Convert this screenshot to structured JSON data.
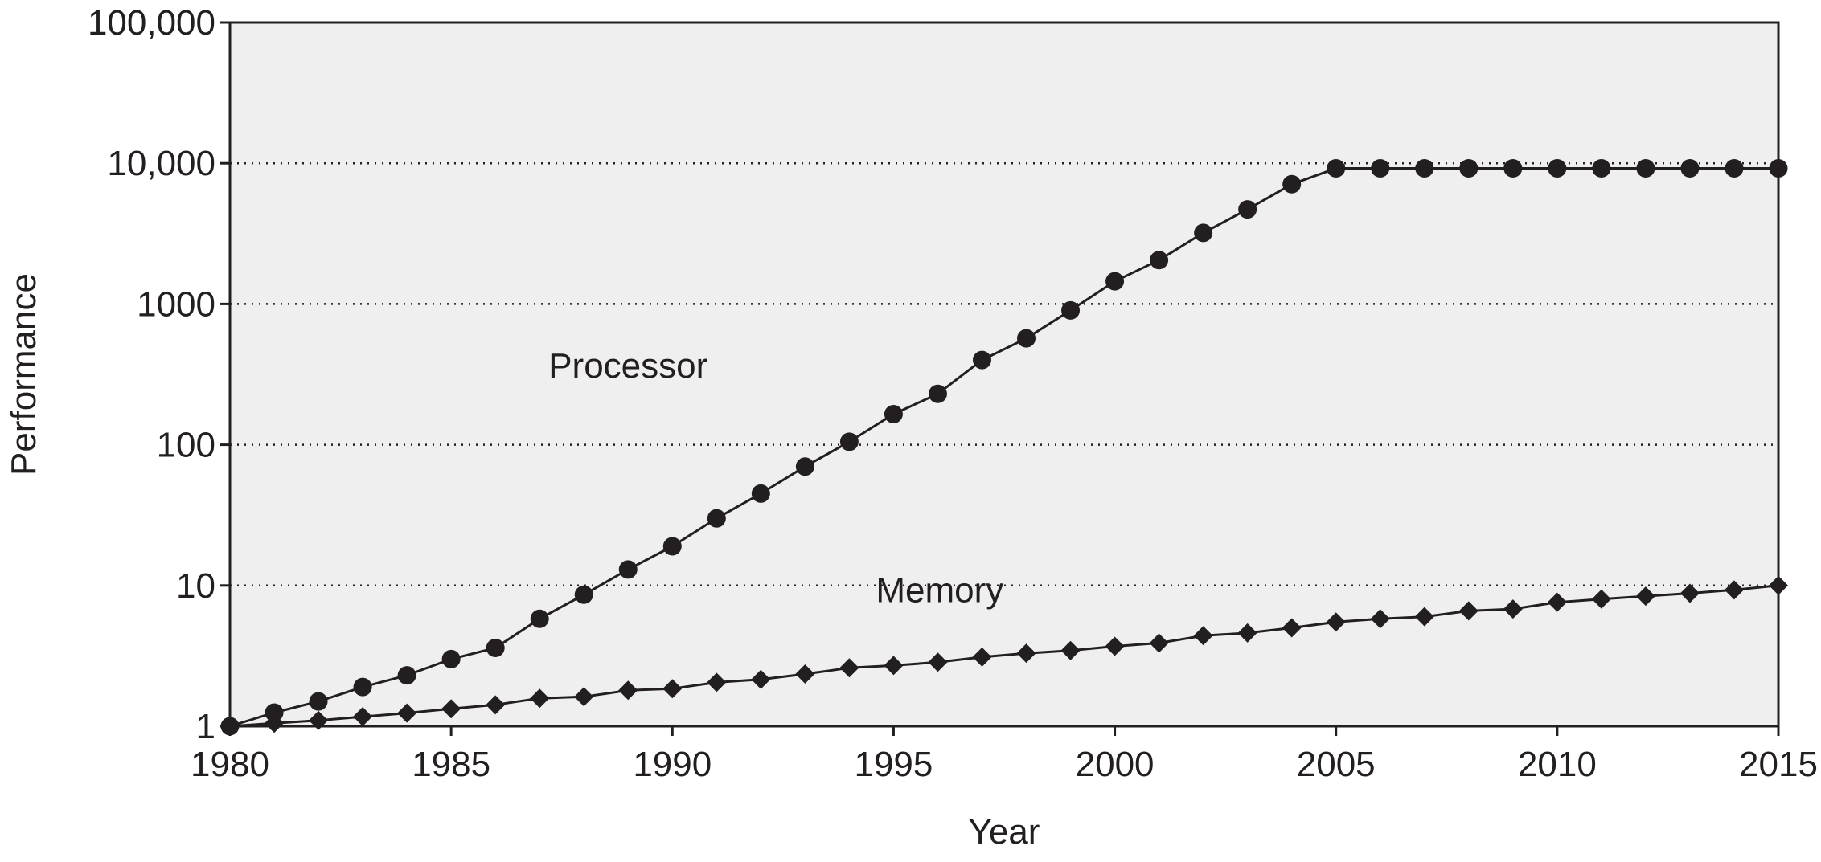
{
  "chart_data": {
    "type": "line",
    "title": "",
    "xlabel": "Year",
    "ylabel": "Performance",
    "yscale": "log",
    "xlim": [
      1980,
      2015
    ],
    "ylim": [
      1,
      100000
    ],
    "x_ticks": [
      1980,
      1985,
      1990,
      1995,
      2000,
      2005,
      2010,
      2015
    ],
    "x_tick_labels": [
      "1980",
      "1985",
      "1990",
      "1995",
      "2000",
      "2005",
      "2010",
      "2015"
    ],
    "y_ticks": [
      1,
      10,
      100,
      1000,
      10000,
      100000
    ],
    "y_tick_labels": [
      "1",
      "10",
      "100",
      "1000",
      "10,000",
      "100,000"
    ],
    "gridlines": "horizontal dotted",
    "background": "#efefef",
    "x": [
      1980,
      1981,
      1982,
      1983,
      1984,
      1985,
      1986,
      1987,
      1988,
      1989,
      1990,
      1991,
      1992,
      1993,
      1994,
      1995,
      1996,
      1997,
      1998,
      1999,
      2000,
      2001,
      2002,
      2003,
      2004,
      2005,
      2006,
      2007,
      2008,
      2009,
      2010,
      2011,
      2012,
      2013,
      2014,
      2015
    ],
    "series": [
      {
        "name": "Processor",
        "marker": "circle",
        "label_anchor": [
          1987.2,
          300
        ],
        "values": [
          1,
          1.25,
          1.5,
          1.9,
          2.3,
          3.0,
          3.6,
          5.8,
          8.6,
          13,
          19,
          30,
          45,
          70,
          105,
          165,
          230,
          400,
          570,
          900,
          1450,
          2050,
          3200,
          4700,
          7100,
          9200,
          9200,
          9200,
          9200,
          9200,
          9200,
          9200,
          9200,
          9200,
          9200,
          9200
        ]
      },
      {
        "name": "Memory",
        "marker": "diamond",
        "label_anchor": [
          1994.6,
          7.6
        ],
        "values": [
          1,
          1.05,
          1.1,
          1.17,
          1.24,
          1.33,
          1.42,
          1.58,
          1.62,
          1.8,
          1.85,
          2.05,
          2.15,
          2.35,
          2.6,
          2.7,
          2.85,
          3.1,
          3.3,
          3.45,
          3.7,
          3.9,
          4.4,
          4.6,
          5.0,
          5.5,
          5.8,
          6.0,
          6.6,
          6.8,
          7.6,
          8.0,
          8.4,
          8.8,
          9.3,
          10
        ]
      }
    ]
  }
}
